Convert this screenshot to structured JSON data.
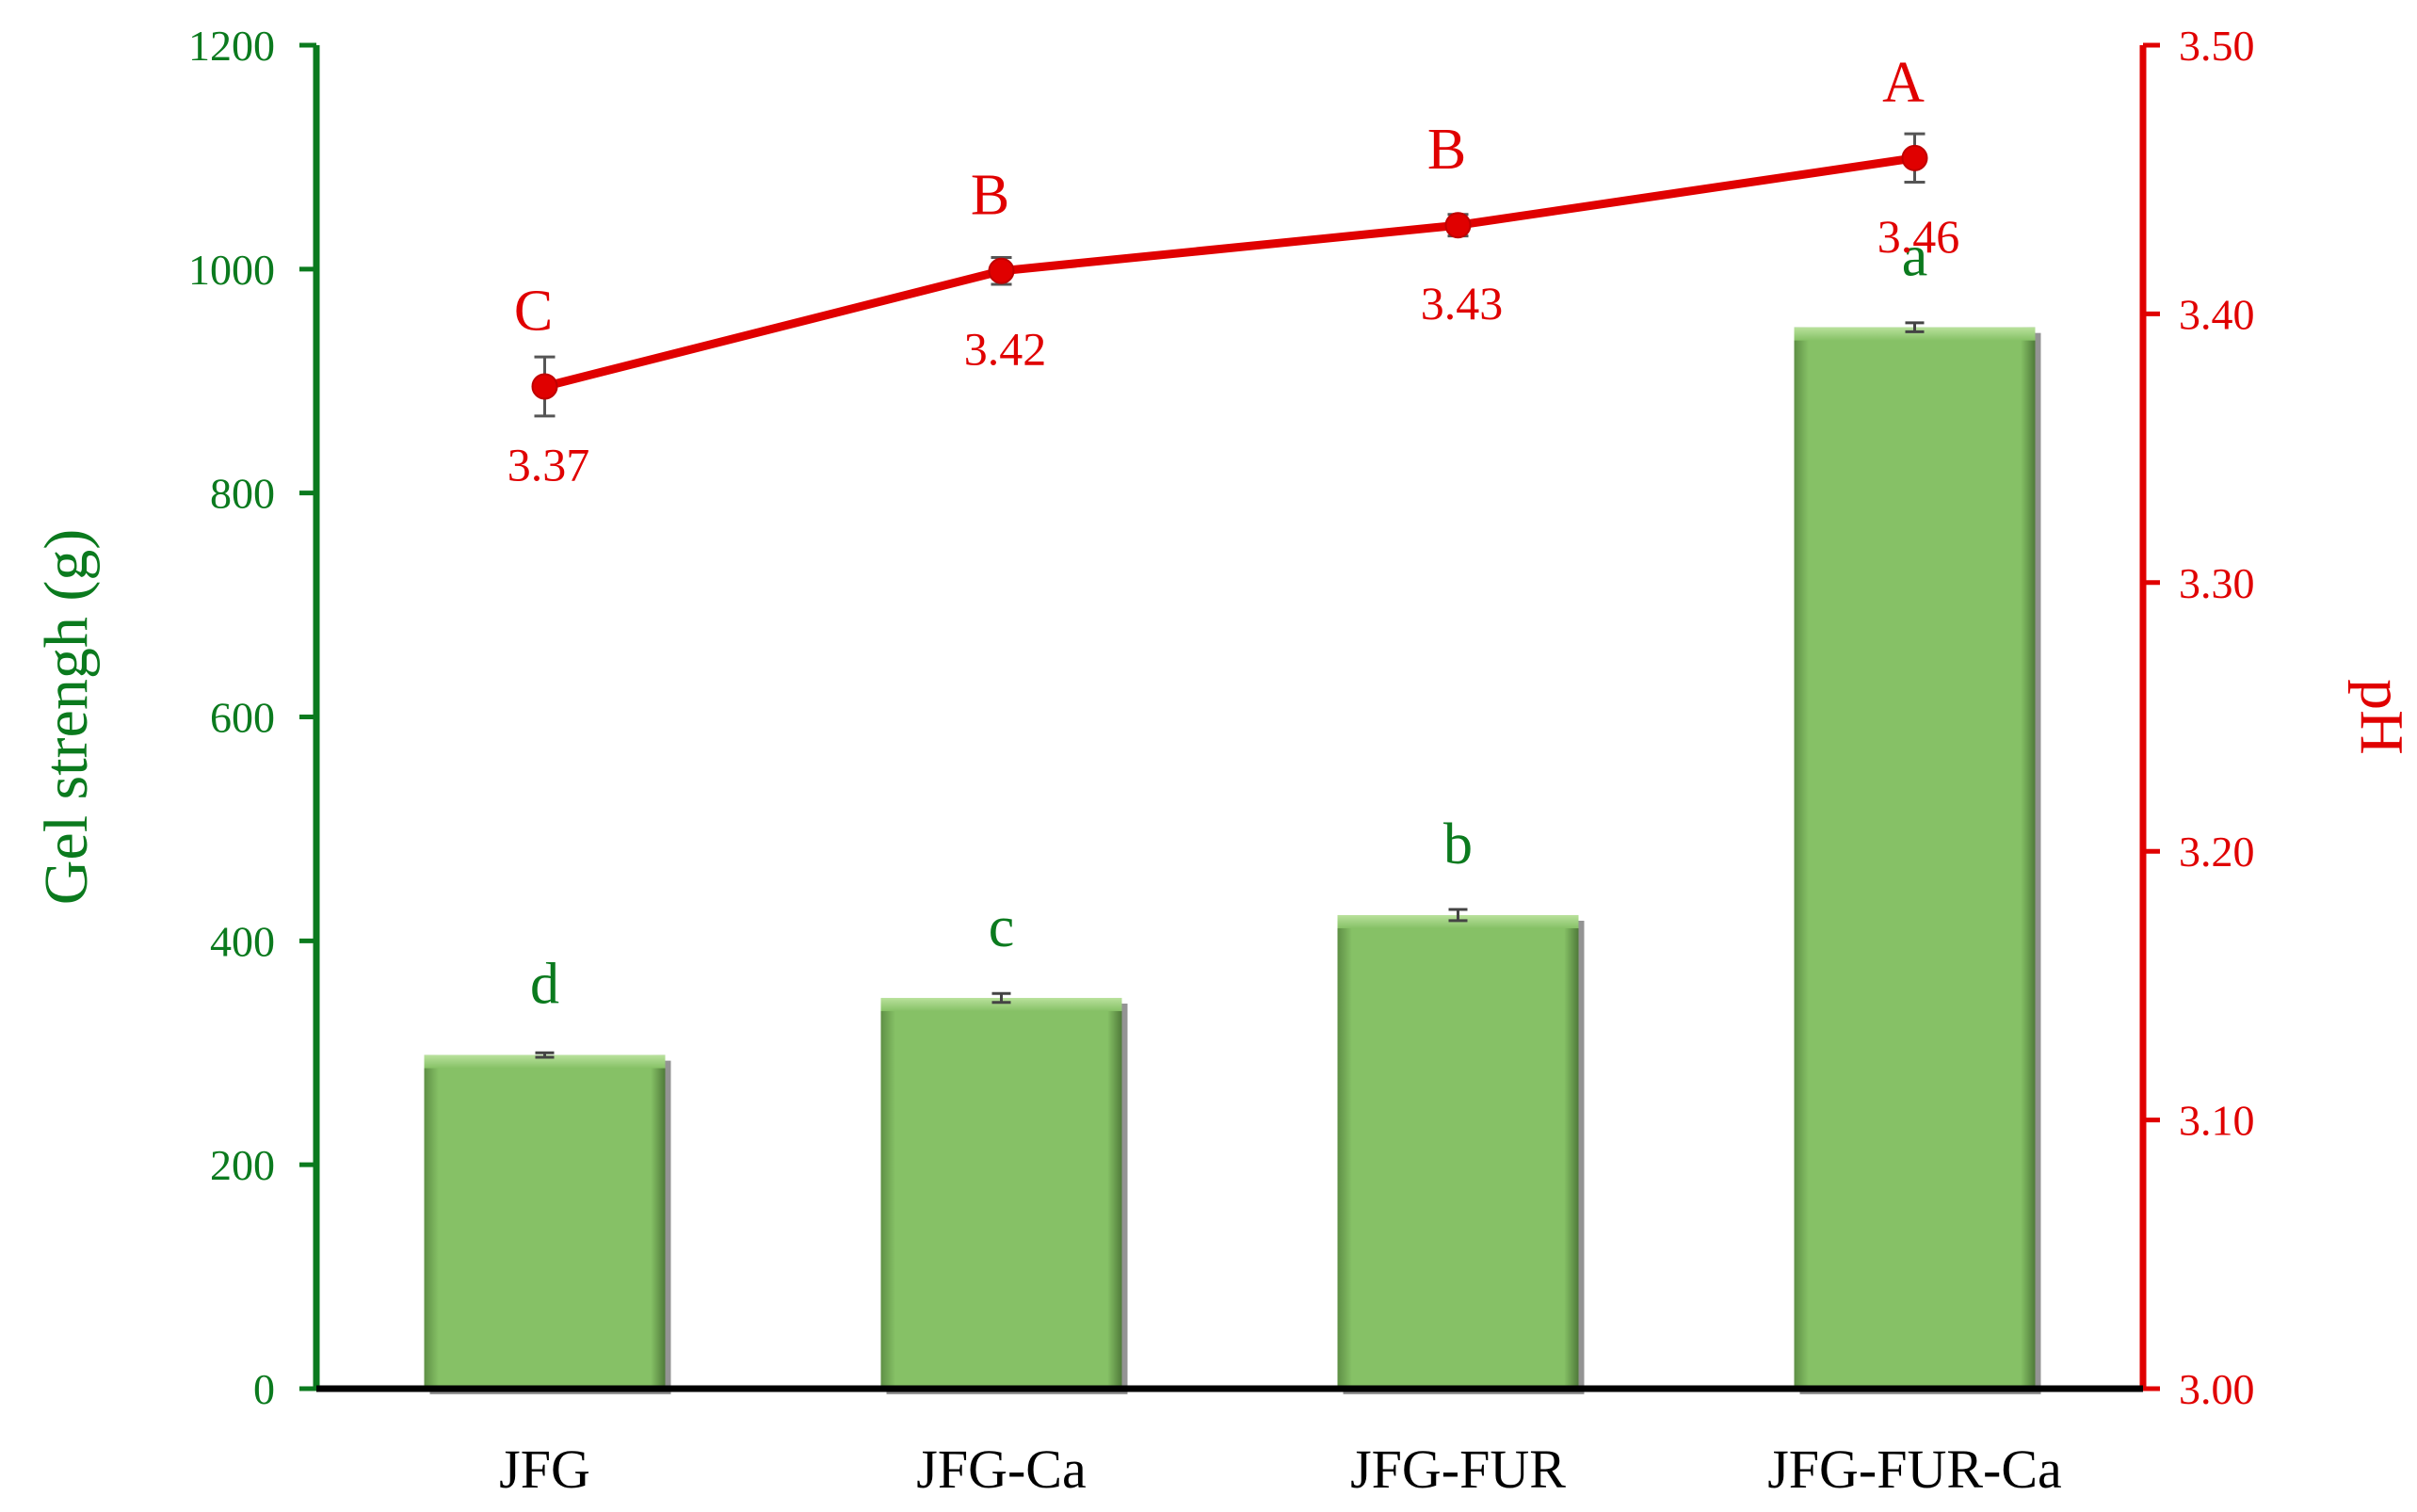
{
  "chart_data": {
    "type": "bar+line",
    "categories": [
      "JFG",
      "JFG-Ca",
      "JFG-FUR",
      "JFG-FUR-Ca"
    ],
    "series": [
      {
        "axis": "left",
        "kind": "bar",
        "values": [
          298,
          349,
          423,
          948
        ],
        "errors": [
          2,
          4,
          5,
          4
        ],
        "significance": [
          "d",
          "c",
          "b",
          "a"
        ],
        "color": "#86c166"
      },
      {
        "axis": "right",
        "kind": "line",
        "values": [
          3.373,
          3.416,
          3.433,
          3.458
        ],
        "errors": [
          0.011,
          0.005,
          0.004,
          0.009
        ],
        "value_labels": [
          "3.37",
          "3.42",
          "3.43",
          "3.46"
        ],
        "significance": [
          "C",
          "B",
          "B",
          "A"
        ],
        "color": "#e00000"
      }
    ],
    "ylabel_left": "Gel strengh (g)",
    "ylabel_right": "pH",
    "ylim_left": [
      0,
      1200
    ],
    "yticks_left": [
      "0",
      "200",
      "400",
      "600",
      "800",
      "1000",
      "1200"
    ],
    "ylim_right": [
      3.0,
      3.5
    ],
    "yticks_right": [
      "3.00",
      "3.10",
      "3.20",
      "3.30",
      "3.40",
      "3.50"
    ],
    "left_axis_color": "#0b7a1e",
    "right_axis_color": "#e00000",
    "grid": false,
    "legend": "none"
  }
}
